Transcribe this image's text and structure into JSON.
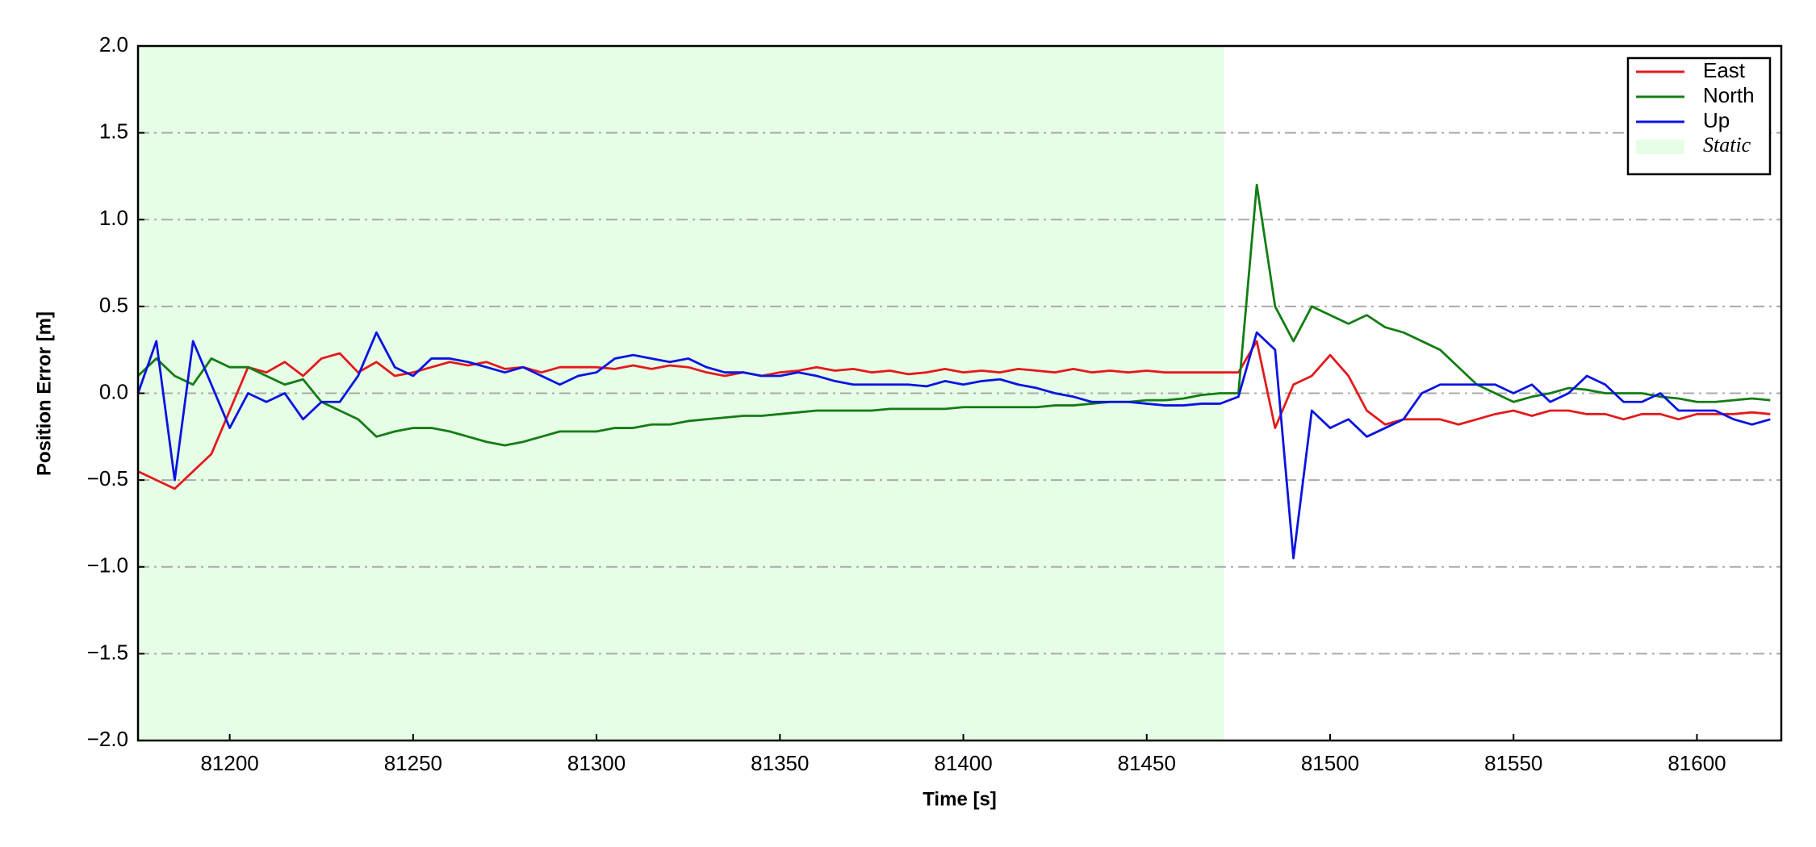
{
  "chart_data": {
    "type": "line",
    "xlabel": "Time [s]",
    "ylabel": "Position Error [m]",
    "xlim": [
      81175,
      81623
    ],
    "ylim": [
      -2,
      2
    ],
    "xticks": [
      81200,
      81250,
      81300,
      81350,
      81400,
      81450,
      81500,
      81550,
      81600
    ],
    "yticks": [
      {
        "value": -2,
        "label": "−2.0"
      },
      {
        "value": -1.5,
        "label": "−1.5"
      },
      {
        "value": -1,
        "label": "−1.0"
      },
      {
        "value": -0.5,
        "label": "−0.5"
      },
      {
        "value": 0,
        "label": "0.0"
      },
      {
        "value": 0.5,
        "label": "0.5"
      },
      {
        "value": 1,
        "label": "1.0"
      },
      {
        "value": 1.5,
        "label": "1.5"
      },
      {
        "value": 2,
        "label": "2.0"
      }
    ],
    "grid": true,
    "legend": "upper right",
    "spans": [
      {
        "name": "Static",
        "x": [
          81175,
          81471
        ],
        "color": "#e6fde6"
      }
    ],
    "x": [
      81175,
      81180,
      81185,
      81190,
      81195,
      81200,
      81205,
      81210,
      81215,
      81220,
      81225,
      81230,
      81235,
      81240,
      81245,
      81250,
      81255,
      81260,
      81265,
      81270,
      81275,
      81280,
      81285,
      81290,
      81295,
      81300,
      81305,
      81310,
      81315,
      81320,
      81325,
      81330,
      81335,
      81340,
      81345,
      81350,
      81355,
      81360,
      81365,
      81370,
      81375,
      81380,
      81385,
      81390,
      81395,
      81400,
      81405,
      81410,
      81415,
      81420,
      81425,
      81430,
      81435,
      81440,
      81445,
      81450,
      81455,
      81460,
      81465,
      81470,
      81475,
      81480,
      81485,
      81490,
      81495,
      81500,
      81505,
      81510,
      81515,
      81520,
      81525,
      81530,
      81535,
      81540,
      81545,
      81550,
      81555,
      81560,
      81565,
      81570,
      81575,
      81580,
      81585,
      81590,
      81595,
      81600,
      81605,
      81610,
      81615,
      81620
    ],
    "series": [
      {
        "name": "East",
        "color": "#e31a1c",
        "values": [
          -0.45,
          -0.5,
          -0.55,
          -0.45,
          -0.35,
          -0.1,
          0.15,
          0.12,
          0.18,
          0.1,
          0.2,
          0.23,
          0.12,
          0.18,
          0.1,
          0.12,
          0.15,
          0.18,
          0.16,
          0.18,
          0.14,
          0.15,
          0.12,
          0.15,
          0.15,
          0.15,
          0.14,
          0.16,
          0.14,
          0.16,
          0.15,
          0.12,
          0.1,
          0.12,
          0.1,
          0.12,
          0.13,
          0.15,
          0.13,
          0.14,
          0.12,
          0.13,
          0.11,
          0.12,
          0.14,
          0.12,
          0.13,
          0.12,
          0.14,
          0.13,
          0.12,
          0.14,
          0.12,
          0.13,
          0.12,
          0.13,
          0.12,
          0.12,
          0.12,
          0.12,
          0.12,
          0.3,
          -0.2,
          0.05,
          0.1,
          0.22,
          0.1,
          -0.1,
          -0.18,
          -0.15,
          -0.15,
          -0.15,
          -0.18,
          -0.15,
          -0.12,
          -0.1,
          -0.13,
          -0.1,
          -0.1,
          -0.12,
          -0.12,
          -0.15,
          -0.12,
          -0.12,
          -0.15,
          -0.12,
          -0.12,
          -0.12,
          -0.11,
          -0.12
        ]
      },
      {
        "name": "North",
        "color": "#137d13",
        "values": [
          0.1,
          0.2,
          0.1,
          0.05,
          0.2,
          0.15,
          0.15,
          0.1,
          0.05,
          0.08,
          -0.05,
          -0.1,
          -0.15,
          -0.25,
          -0.22,
          -0.2,
          -0.2,
          -0.22,
          -0.25,
          -0.28,
          -0.3,
          -0.28,
          -0.25,
          -0.22,
          -0.22,
          -0.22,
          -0.2,
          -0.2,
          -0.18,
          -0.18,
          -0.16,
          -0.15,
          -0.14,
          -0.13,
          -0.13,
          -0.12,
          -0.11,
          -0.1,
          -0.1,
          -0.1,
          -0.1,
          -0.09,
          -0.09,
          -0.09,
          -0.09,
          -0.08,
          -0.08,
          -0.08,
          -0.08,
          -0.08,
          -0.07,
          -0.07,
          -0.06,
          -0.05,
          -0.05,
          -0.04,
          -0.04,
          -0.03,
          -0.01,
          0.0,
          0.0,
          1.2,
          0.5,
          0.3,
          0.5,
          0.45,
          0.4,
          0.45,
          0.38,
          0.35,
          0.3,
          0.25,
          0.15,
          0.05,
          0.0,
          -0.05,
          -0.02,
          0.0,
          0.03,
          0.02,
          0.0,
          0.0,
          0.0,
          -0.02,
          -0.03,
          -0.05,
          -0.05,
          -0.04,
          -0.03,
          -0.04
        ]
      },
      {
        "name": "Up",
        "color": "#0a14e0",
        "values": [
          0.0,
          0.3,
          -0.5,
          0.3,
          0.05,
          -0.2,
          0.0,
          -0.05,
          0.0,
          -0.15,
          -0.05,
          -0.05,
          0.1,
          0.35,
          0.15,
          0.1,
          0.2,
          0.2,
          0.18,
          0.15,
          0.12,
          0.15,
          0.1,
          0.05,
          0.1,
          0.12,
          0.2,
          0.22,
          0.2,
          0.18,
          0.2,
          0.15,
          0.12,
          0.12,
          0.1,
          0.1,
          0.12,
          0.1,
          0.07,
          0.05,
          0.05,
          0.05,
          0.05,
          0.04,
          0.07,
          0.05,
          0.07,
          0.08,
          0.05,
          0.03,
          0.0,
          -0.02,
          -0.05,
          -0.05,
          -0.05,
          -0.06,
          -0.07,
          -0.07,
          -0.06,
          -0.06,
          -0.02,
          0.35,
          0.25,
          -0.95,
          -0.1,
          -0.2,
          -0.15,
          -0.25,
          -0.2,
          -0.15,
          0.0,
          0.05,
          0.05,
          0.05,
          0.05,
          0.0,
          0.05,
          -0.05,
          0.0,
          0.1,
          0.05,
          -0.05,
          -0.05,
          0.0,
          -0.1,
          -0.1,
          -0.1,
          -0.15,
          -0.18,
          -0.15
        ]
      }
    ]
  }
}
